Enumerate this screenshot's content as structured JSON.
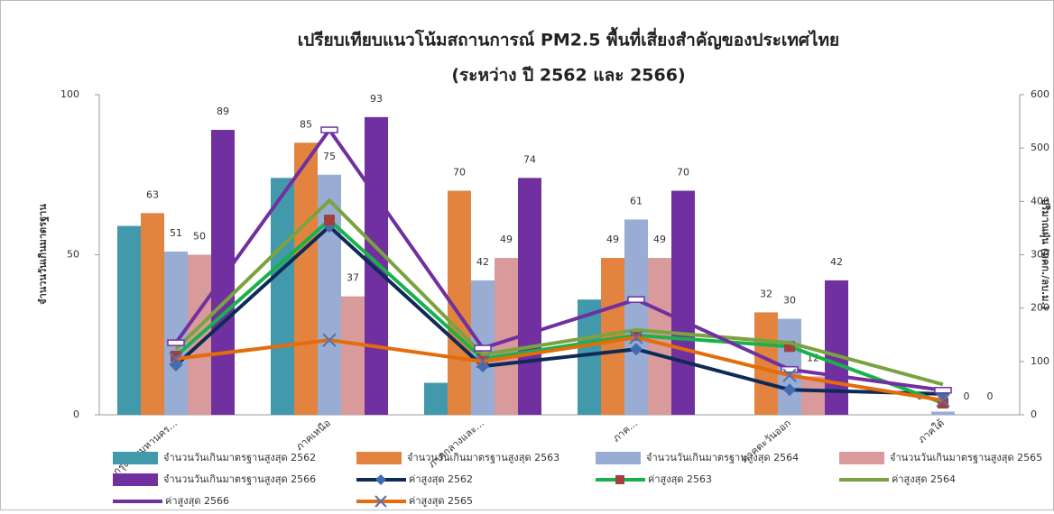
{
  "chart_data": {
    "type": "combo",
    "title": "เปรียบเทียบแนวโน้มสถานการณ์ PM2.5 พื้นที่เสี่ยงสำคัญของประเทศไทย",
    "subtitle": "(ระหว่าง ปี 2562 และ 2566)",
    "y_label": "จำนวนวันเกินมาตรฐาน",
    "y2_label": "ปริมาณฝุ่น (มคก./ลบ.ม.)",
    "categories": [
      "กรุงเทพมหานคร...",
      "ภาคเหนือ",
      "ภาคกลางและ...",
      "ภาค...",
      "ภาคตะวันออก",
      "ภาคใต้"
    ],
    "ylim": [
      0,
      100
    ],
    "yticks": [
      0,
      50,
      100
    ],
    "y2lim": [
      0,
      600
    ],
    "y2ticks": [
      0,
      100,
      200,
      300,
      400,
      500,
      600
    ],
    "grid": false,
    "series": [
      {
        "name": "จำนวนวันเกินมาตรฐานสูงสุด 2562",
        "type": "bar",
        "color": "#4199ab",
        "data_labels": false,
        "values": [
          59,
          74,
          10,
          36,
          0,
          0
        ]
      },
      {
        "name": "จำนวนวันเกินมาตรฐานสูงสุด 2563",
        "type": "bar",
        "color": "#e2843f",
        "data_labels": true,
        "values": [
          63,
          85,
          70,
          49,
          32,
          0
        ]
      },
      {
        "name": "จำนวนวันเกินมาตรฐานสูงสุด 2564",
        "type": "bar",
        "color": "#98acd4",
        "data_labels": true,
        "values": [
          51,
          75,
          42,
          61,
          30,
          1
        ]
      },
      {
        "name": "จำนวนวันเกินมาตรฐานสูงสุด 2565",
        "type": "bar",
        "color": "#d89a9b",
        "data_labels": true,
        "values": [
          50,
          37,
          49,
          49,
          12,
          0
        ]
      },
      {
        "name": "จำนวนวันเกินมาตรฐานสูงสุด 2566",
        "type": "bar",
        "color": "#7030a0",
        "data_labels": true,
        "values": [
          89,
          93,
          74,
          70,
          42,
          0
        ]
      },
      {
        "name": "ค่าสูงสุด 2562",
        "type": "line",
        "axis": "y2",
        "color": "#0e2a57",
        "marker": "diamond",
        "marker_color": "#3f6db0",
        "values": [
          93,
          353,
          91,
          123,
          47,
          39
        ]
      },
      {
        "name": "ค่าสูงสุด 2563",
        "type": "line",
        "axis": "y2",
        "color": "#1ab14b",
        "marker": "square",
        "marker_color": "#a33f3f",
        "values": [
          110,
          365,
          105,
          149,
          128,
          22
        ]
      },
      {
        "name": "ค่าสูงสุด 2564",
        "type": "line",
        "axis": "y2",
        "color": "#7aa33f",
        "marker": "none",
        "marker_color": "#7aa33f",
        "values": [
          123,
          402,
          113,
          159,
          135,
          57
        ]
      },
      {
        "name": "ค่าสูงสุด 2566",
        "type": "line",
        "axis": "y2",
        "color": "#7030a0",
        "marker": "dash",
        "marker_color": "#7030a0",
        "values": [
          135,
          534,
          125,
          216,
          85,
          46
        ]
      },
      {
        "name": "ค่าสูงสุด 2565",
        "type": "line",
        "axis": "y2",
        "color": "#e46c0a",
        "marker": "x",
        "marker_color": "#5a6fa8",
        "values": [
          105,
          140,
          100,
          145,
          74,
          27
        ]
      }
    ]
  }
}
